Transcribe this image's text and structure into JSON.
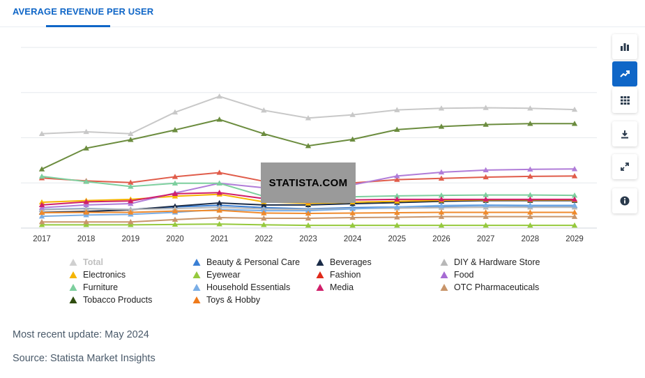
{
  "header": {
    "title": "AVERAGE REVENUE PER USER"
  },
  "toolbar": {
    "buttons": [
      {
        "name": "bar-chart",
        "active": false
      },
      {
        "name": "line-chart",
        "active": true
      },
      {
        "name": "table",
        "active": false
      },
      {
        "name": "download",
        "active": false
      },
      {
        "name": "fullscreen",
        "active": false
      },
      {
        "name": "info",
        "active": false
      }
    ]
  },
  "watermark": "STATISTA.COM",
  "footer": {
    "update": "Most recent update: May 2024",
    "source": "Source: Statista Market Insights"
  },
  "chart_data": {
    "type": "line",
    "title": "",
    "xlabel": "",
    "ylabel": "",
    "y_axis_labels_shown": false,
    "grid": "horizontal",
    "legend_position": "bottom",
    "x": [
      "2017",
      "2018",
      "2019",
      "2020",
      "2021",
      "2022",
      "2023",
      "2024",
      "2025",
      "2026",
      "2027",
      "2028",
      "2029"
    ],
    "ylim": [
      0,
      100
    ],
    "series": [
      {
        "name": "Total",
        "color": "#c8c8c8",
        "visible": true,
        "values": [
          52.2,
          53.3,
          52.2,
          64.1,
          72.9,
          65.2,
          60.9,
          62.7,
          65.4,
          66.3,
          66.6,
          66.3,
          65.6
        ]
      },
      {
        "name": "Beauty & Personal Care",
        "color": "#3a7fd5",
        "visible": true,
        "values": [
          10.3,
          10.8,
          10.3,
          11.7,
          12.6,
          11.3,
          10.6,
          11.3,
          11.7,
          12.1,
          12.5,
          12.3,
          12.3
        ]
      },
      {
        "name": "Beverages",
        "color": "#1a2b47",
        "visible": true,
        "values": [
          8.7,
          9.2,
          10.1,
          12.1,
          13.9,
          12.8,
          12.8,
          13.5,
          14.1,
          14.8,
          15.2,
          15.2,
          15.2
        ]
      },
      {
        "name": "DIY & Hardware Store",
        "color": "#b8b8b8",
        "visible": true,
        "values": [
          10.1,
          10.6,
          10.3,
          10.8,
          11.5,
          10.6,
          10.3,
          10.8,
          11.0,
          11.3,
          11.5,
          11.5,
          11.5
        ]
      },
      {
        "name": "Electronics",
        "color": "#f5b400",
        "visible": true,
        "values": [
          14.3,
          15.2,
          15.9,
          17.6,
          18.7,
          14.5,
          13.7,
          14.3,
          14.8,
          15.4,
          15.6,
          15.6,
          15.6
        ]
      },
      {
        "name": "Eyewear",
        "color": "#95c93d",
        "visible": true,
        "values": [
          1.8,
          1.8,
          1.8,
          2.0,
          2.2,
          1.8,
          1.5,
          1.5,
          1.5,
          1.5,
          1.5,
          1.5,
          1.5
        ]
      },
      {
        "name": "Fashion",
        "color": "#e05c4a",
        "visible": true,
        "values": [
          27.7,
          26.1,
          25.2,
          28.4,
          30.7,
          25.9,
          24.1,
          25.0,
          26.8,
          27.5,
          28.2,
          28.6,
          28.8
        ]
      },
      {
        "name": "Food",
        "color": "#b07cd8",
        "visible": true,
        "values": [
          11.3,
          12.8,
          13.5,
          19.4,
          24.8,
          22.3,
          20.8,
          23.9,
          28.8,
          30.9,
          32.1,
          32.5,
          32.7
        ]
      },
      {
        "name": "Furniture",
        "color": "#7dcf9e",
        "visible": true,
        "values": [
          28.6,
          25.7,
          23.0,
          24.8,
          24.8,
          17.6,
          16.6,
          17.3,
          17.8,
          18.1,
          18.3,
          18.3,
          18.1
        ]
      },
      {
        "name": "Household Essentials",
        "color": "#7aaee6",
        "visible": true,
        "values": [
          6.5,
          7.2,
          7.6,
          8.7,
          10.3,
          9.6,
          9.6,
          10.6,
          11.7,
          12.5,
          12.8,
          12.6,
          12.6
        ]
      },
      {
        "name": "Media",
        "color": "#d01f6a",
        "visible": true,
        "values": [
          12.8,
          14.5,
          15.0,
          19.0,
          19.6,
          16.3,
          15.0,
          15.6,
          15.9,
          15.9,
          15.9,
          15.9,
          15.9
        ]
      },
      {
        "name": "OTC Pharmaceuticals",
        "color": "#c8956a",
        "visible": true,
        "values": [
          3.4,
          3.4,
          3.4,
          4.7,
          5.8,
          5.4,
          5.4,
          5.8,
          6.0,
          6.3,
          6.3,
          6.3,
          6.3
        ]
      },
      {
        "name": "Tobacco Products",
        "color": "#6b8c3e",
        "visible": true,
        "values": [
          32.6,
          44.2,
          48.9,
          54.3,
          60.1,
          52.2,
          45.5,
          49.1,
          54.5,
          56.2,
          57.3,
          57.8,
          57.8
        ]
      },
      {
        "name": "Toys & Hobby",
        "color": "#ef8a2c",
        "visible": true,
        "values": [
          8.5,
          8.7,
          8.7,
          9.4,
          9.8,
          8.3,
          8.1,
          8.3,
          8.5,
          8.7,
          8.7,
          8.7,
          8.7
        ]
      }
    ],
    "legend_entries": [
      {
        "label": "Total",
        "color": "#c8c8c8",
        "muted": true
      },
      {
        "label": "Beauty & Personal Care",
        "color": "#3a7fd5"
      },
      {
        "label": "Beverages",
        "color": "#1a2b47"
      },
      {
        "label": "DIY & Hardware Store",
        "color": "#b8b8b8"
      },
      {
        "label": "Electronics",
        "color": "#f5b400"
      },
      {
        "label": "Eyewear",
        "color": "#95c93d"
      },
      {
        "label": "Fashion",
        "color": "#e02a1a"
      },
      {
        "label": "Food",
        "color": "#a66bd3"
      },
      {
        "label": "Furniture",
        "color": "#7dcf9e"
      },
      {
        "label": "Household Essentials",
        "color": "#7aaee6"
      },
      {
        "label": "Media",
        "color": "#d01f6a"
      },
      {
        "label": "OTC Pharmaceuticals",
        "color": "#c8956a"
      },
      {
        "label": "Tobacco Products",
        "color": "#2f4d0f"
      },
      {
        "label": "Toys & Hobby",
        "color": "#ef7a1a"
      }
    ]
  }
}
